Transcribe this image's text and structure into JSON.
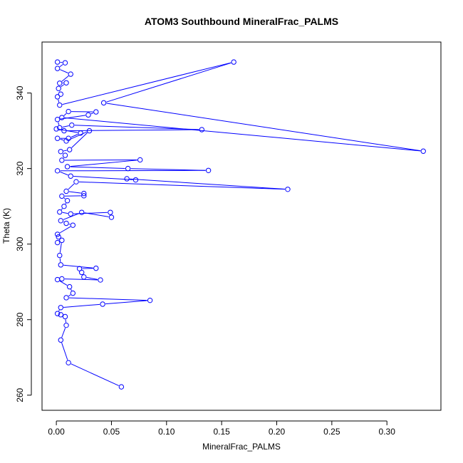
{
  "chart_data": {
    "type": "line",
    "title": "ATOM3 Southbound MineralFrac_PALMS",
    "xlabel": "MineralFrac_PALMS",
    "ylabel": "Theta (K)",
    "xlim": [
      -0.013,
      0.349
    ],
    "ylim": [
      256.0,
      353.5
    ],
    "x_ticks": [
      0.0,
      0.05,
      0.1,
      0.15,
      0.2,
      0.25,
      0.3
    ],
    "x_tick_labels": [
      "0.00",
      "0.05",
      "0.10",
      "0.15",
      "0.20",
      "0.25",
      "0.30"
    ],
    "y_ticks": [
      260,
      280,
      300,
      320,
      340
    ],
    "y_tick_labels": [
      "260",
      "280",
      "300",
      "320",
      "340"
    ],
    "grid": false,
    "series": [
      {
        "color": "#0000ff",
        "marker": "open-circle",
        "points": [
          [
            0.001,
            348.2
          ],
          [
            0.008,
            348.0
          ],
          [
            0.001,
            346.5
          ],
          [
            0.013,
            345.0
          ],
          [
            0.003,
            342.6
          ],
          [
            0.009,
            342.7
          ],
          [
            0.002,
            341.2
          ],
          [
            0.004,
            339.7
          ],
          [
            0.001,
            339.0
          ],
          [
            0.003,
            336.8
          ],
          [
            0.161,
            348.2
          ],
          [
            0.043,
            337.4
          ],
          [
            0.333,
            324.6
          ],
          [
            0.005,
            333.5
          ],
          [
            0.011,
            335.1
          ],
          [
            0.036,
            335.0
          ],
          [
            0.029,
            334.2
          ],
          [
            0.001,
            333.0
          ],
          [
            0.003,
            330.8
          ],
          [
            0.014,
            331.5
          ],
          [
            0.132,
            330.3
          ],
          [
            0.007,
            330.0
          ],
          [
            0.0,
            330.5
          ],
          [
            0.022,
            329.4
          ],
          [
            0.011,
            328.0
          ],
          [
            0.001,
            328.0
          ],
          [
            0.009,
            327.3
          ],
          [
            0.03,
            330.0
          ],
          [
            0.012,
            325.0
          ],
          [
            0.004,
            324.5
          ],
          [
            0.008,
            323.5
          ],
          [
            0.005,
            322.2
          ],
          [
            0.076,
            322.3
          ],
          [
            0.01,
            320.5
          ],
          [
            0.065,
            320.0
          ],
          [
            0.138,
            319.5
          ],
          [
            0.001,
            319.4
          ],
          [
            0.013,
            318.0
          ],
          [
            0.072,
            317.0
          ],
          [
            0.064,
            317.3
          ],
          [
            0.21,
            314.5
          ],
          [
            0.018,
            316.5
          ],
          [
            0.009,
            314.0
          ],
          [
            0.025,
            313.4
          ],
          [
            0.025,
            312.8
          ],
          [
            0.005,
            312.7
          ],
          [
            0.01,
            311.5
          ],
          [
            0.007,
            310.0
          ],
          [
            0.003,
            308.5
          ],
          [
            0.013,
            308.0
          ],
          [
            0.049,
            308.4
          ],
          [
            0.05,
            307.1
          ],
          [
            0.023,
            308.4
          ],
          [
            0.004,
            306.2
          ],
          [
            0.009,
            305.5
          ],
          [
            0.015,
            305.0
          ],
          [
            0.001,
            302.6
          ],
          [
            0.002,
            301.9
          ],
          [
            0.001,
            300.4
          ],
          [
            0.005,
            301.0
          ],
          [
            0.003,
            297.0
          ],
          [
            0.004,
            294.5
          ],
          [
            0.036,
            293.6
          ],
          [
            0.021,
            293.5
          ],
          [
            0.023,
            292.5
          ],
          [
            0.025,
            291.3
          ],
          [
            0.04,
            290.5
          ],
          [
            0.005,
            290.8
          ],
          [
            0.001,
            290.6
          ],
          [
            0.012,
            288.7
          ],
          [
            0.015,
            287.0
          ],
          [
            0.009,
            285.8
          ],
          [
            0.085,
            285.1
          ],
          [
            0.042,
            284.1
          ],
          [
            0.004,
            283.2
          ],
          [
            0.001,
            281.6
          ],
          [
            0.004,
            281.3
          ],
          [
            0.008,
            280.8
          ],
          [
            0.009,
            278.5
          ],
          [
            0.004,
            274.6
          ],
          [
            0.011,
            268.6
          ],
          [
            0.059,
            262.2
          ]
        ]
      }
    ]
  }
}
